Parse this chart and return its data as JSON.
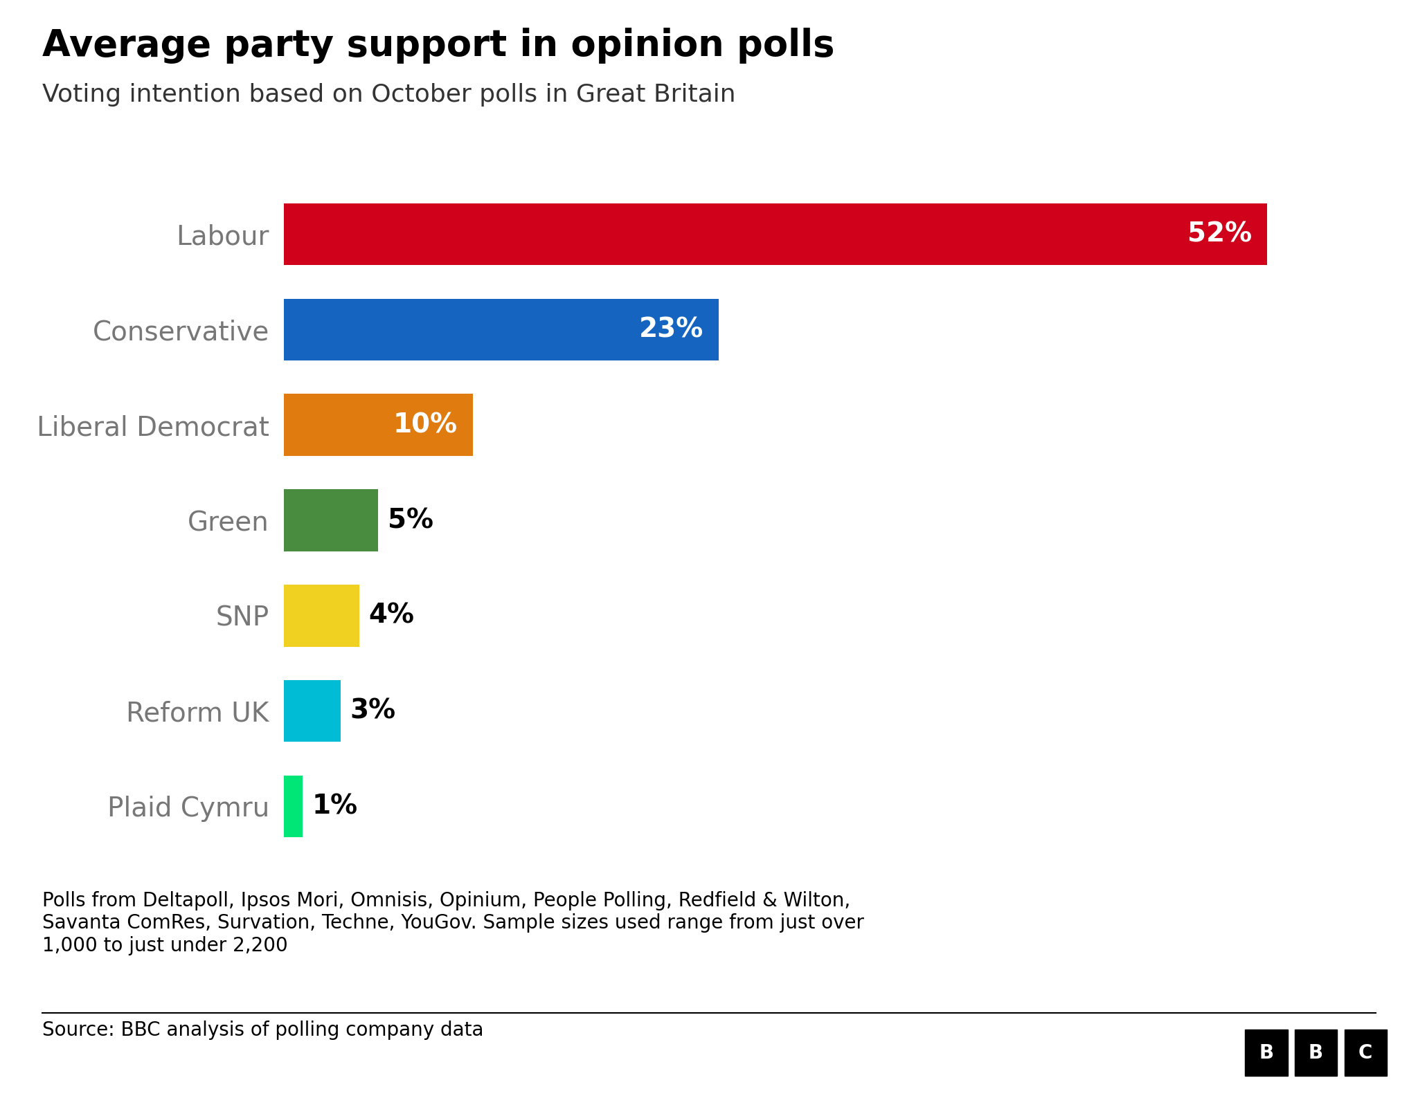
{
  "title": "Average party support in opinion polls",
  "subtitle": "Voting intention based on October polls in Great Britain",
  "parties": [
    "Labour",
    "Conservative",
    "Liberal Democrat",
    "Green",
    "SNP",
    "Reform UK",
    "Plaid Cymru"
  ],
  "values": [
    52,
    23,
    10,
    5,
    4,
    3,
    1
  ],
  "colors": [
    "#d0021b",
    "#1565c0",
    "#e07b10",
    "#4a8c3f",
    "#f0d020",
    "#00bcd4",
    "#00e676"
  ],
  "footnote_line1": "Polls from Deltapoll, Ipsos Mori, Omnisis, Opinium, People Polling, Redfield & Wilton,",
  "footnote_line2": "Savanta ComRes, Survation, Techne, YouGov. Sample sizes used range from just over",
  "footnote_line3": "1,000 to just under 2,200",
  "source": "Source: BBC analysis of polling company data",
  "bg_color": "#ffffff",
  "title_fontsize": 38,
  "subtitle_fontsize": 26,
  "label_fontsize": 28,
  "bar_label_fontsize": 28,
  "footnote_fontsize": 20,
  "source_fontsize": 20
}
